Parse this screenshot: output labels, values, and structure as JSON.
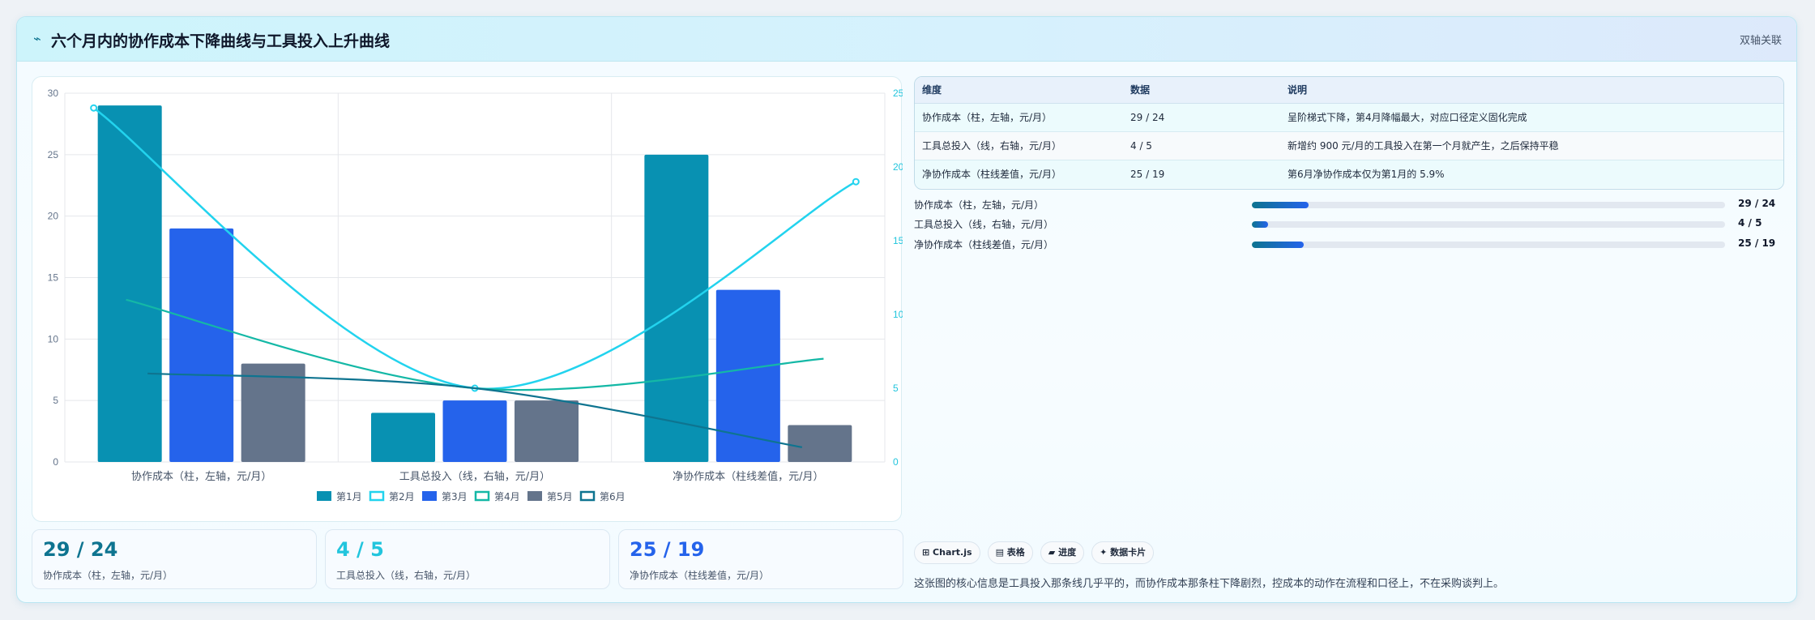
{
  "header": {
    "icon": "⌁",
    "title": "六个月内的协作成本下降曲线与工具投入上升曲线",
    "tag": "双轴关联"
  },
  "chart_data": {
    "type": "bar",
    "categories": [
      "协作成本（柱，左轴，元/月）",
      "工具总投入（线，右轴，元/月）",
      "净协作成本（柱线差值，元/月）"
    ],
    "series": [
      {
        "name": "第1月",
        "kind": "bar",
        "axis": "left",
        "color": "#0891b2",
        "values": [
          29,
          4,
          25
        ]
      },
      {
        "name": "第2月",
        "kind": "line",
        "axis": "right",
        "color": "#22d3ee",
        "values": [
          24,
          5,
          19
        ]
      },
      {
        "name": "第3月",
        "kind": "bar",
        "axis": "left",
        "color": "#2563eb",
        "values": [
          19,
          5,
          14
        ]
      },
      {
        "name": "第4月",
        "kind": "line",
        "axis": "right",
        "color": "#14b8a6",
        "values": [
          11,
          5,
          7
        ]
      },
      {
        "name": "第5月",
        "kind": "bar",
        "axis": "left",
        "color": "#64748b",
        "values": [
          8,
          5,
          3
        ]
      },
      {
        "name": "第6月",
        "kind": "line",
        "axis": "right",
        "color": "#0e7490",
        "values": [
          6,
          5,
          1
        ]
      }
    ],
    "y_left": {
      "min": 0,
      "max": 30,
      "ticks": [
        0,
        5,
        10,
        15,
        20,
        25,
        30
      ]
    },
    "y_right": {
      "min": 0,
      "max": 25,
      "ticks": [
        0,
        5,
        10,
        15,
        20,
        25
      ]
    },
    "grid": true,
    "legend_position": "bottom"
  },
  "table": {
    "headers": [
      "维度",
      "数据",
      "说明"
    ],
    "rows": [
      [
        "协作成本（柱，左轴，元/月）",
        "29 / 24",
        "呈阶梯式下降，第4月降幅最大，对应口径定义固化完成"
      ],
      [
        "工具总投入（线，右轴，元/月）",
        "4 / 5",
        "新增约 900 元/月的工具投入在第一个月就产生，之后保持平稳"
      ],
      [
        "净协作成本（柱线差值，元/月）",
        "25 / 19",
        "第6月净协作成本仅为第1月的 5.9%"
      ]
    ]
  },
  "progress": [
    {
      "label": "协作成本（柱，左轴，元/月）",
      "value": "29 / 24",
      "fraction": 0.12
    },
    {
      "label": "工具总投入（线，右轴，元/月）",
      "value": "4 / 5",
      "fraction": 0.035
    },
    {
      "label": "净协作成本（柱线差值，元/月）",
      "value": "25 / 19",
      "fraction": 0.11
    }
  ],
  "kpis": [
    {
      "value": "29 / 24",
      "label": "协作成本（柱，左轴，元/月）",
      "color": "#0e7490"
    },
    {
      "value": "4 / 5",
      "label": "工具总投入（线，右轴，元/月）",
      "color": "#22c5dd"
    },
    {
      "value": "25 / 19",
      "label": "净协作成本（柱线差值，元/月）",
      "color": "#2563eb"
    }
  ],
  "chips": [
    "⊞ Chart.js",
    "▤ 表格",
    "▰ 进度",
    "✦ 数据卡片"
  ],
  "insight": "这张图的核心信息是工具投入那条线几乎平的，而协作成本那条柱下降剧烈，控成本的动作在流程和口径上，不在采购谈判上。"
}
